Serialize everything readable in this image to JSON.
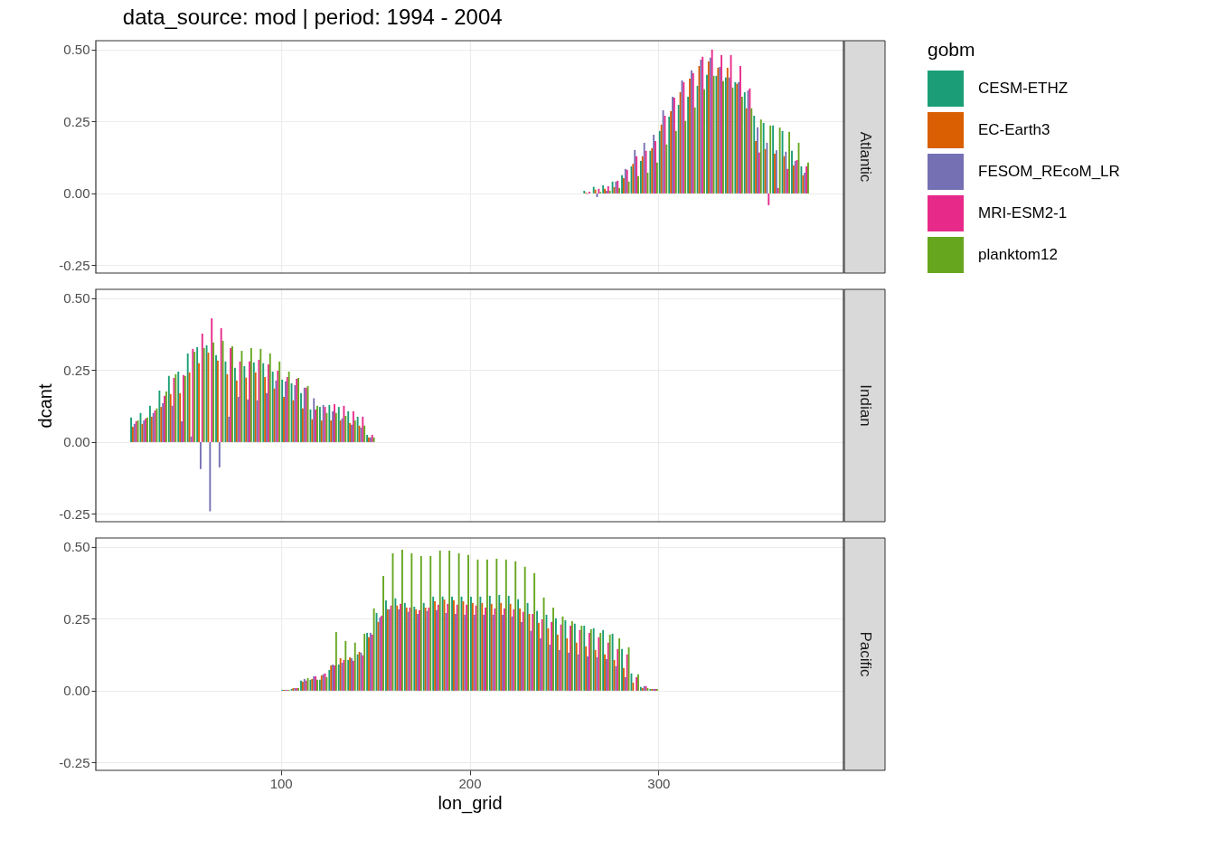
{
  "chart_data": [
    {
      "type": "bar",
      "title": "data_source: mod | period: 1994 - 2004",
      "annotations": [
        "Atlantic"
      ],
      "legend": "right",
      "legend_title": "gobm",
      "grid": true,
      "tick_labels": "y",
      "xlim": [
        2,
        398
      ],
      "xticks": [
        100,
        200,
        300
      ],
      "ylim": [
        -0.277,
        0.531
      ],
      "yticks": [
        {
          "value": -0.25,
          "label": "-0.25"
        },
        {
          "value": 0,
          "label": "0.00"
        },
        {
          "value": 0.25,
          "label": "0.25"
        },
        {
          "value": 0.5,
          "label": "0.50"
        }
      ],
      "x": [
        262.5,
        267.5,
        272.5,
        277.5,
        282.5,
        287.5,
        292.5,
        297.5,
        302.5,
        307.5,
        312.5,
        317.5,
        322.5,
        327.5,
        332.5,
        337.5,
        342.5,
        347.5,
        352.5,
        357.5,
        362.5,
        367.5,
        372.5,
        377.5
      ],
      "series": [
        {
          "name": "CESM-ETHZ",
          "color": "#1b9e77",
          "values": [
            0.009,
            0.023,
            0.028,
            0.041,
            0.063,
            0.094,
            0.113,
            0.148,
            0.217,
            0.267,
            0.308,
            0.336,
            0.374,
            0.412,
            0.409,
            0.403,
            0.387,
            0.352,
            0.27,
            0.245,
            0.236,
            0.217,
            0.148,
            0.094
          ]
        },
        {
          "name": "EC-Earth3",
          "color": "#d95f02",
          "values": [
            0.003,
            0.013,
            0.016,
            0.022,
            0.053,
            0.103,
            0.129,
            0.157,
            0.239,
            0.286,
            0.352,
            0.399,
            0.443,
            0.459,
            0.437,
            0.437,
            0.381,
            0.296,
            0.182,
            0.154,
            0.138,
            0.129,
            0.097,
            0.063
          ]
        },
        {
          "name": "FESOM_REcoM_LR",
          "color": "#7570b3",
          "values": [
            -0.002,
            -0.013,
            0.009,
            0.041,
            0.085,
            0.151,
            0.176,
            0.204,
            0.289,
            0.336,
            0.393,
            0.428,
            0.465,
            0.472,
            0.44,
            0.403,
            0.387,
            0.358,
            0.23,
            0.176,
            0.15,
            0.145,
            0.113,
            0.072
          ]
        },
        {
          "name": "MRI-ESM2-1",
          "color": "#e7298a",
          "values": [
            0.006,
            0.016,
            0.025,
            0.044,
            0.082,
            0.129,
            0.148,
            0.182,
            0.27,
            0.333,
            0.387,
            0.418,
            0.475,
            0.5,
            0.481,
            0.481,
            0.443,
            0.365,
            0.142,
            -0.041,
            0.019,
            0.085,
            0.116,
            0.094
          ]
        },
        {
          "name": "planktom12",
          "color": "#66a61e",
          "values": [
            null,
            0.005,
            0.009,
            0.019,
            0.041,
            0.06,
            0.072,
            0.107,
            0.17,
            0.217,
            0.252,
            0.299,
            0.362,
            0.409,
            0.39,
            0.368,
            0.336,
            0.296,
            0.257,
            0.236,
            0.229,
            0.214,
            0.176,
            0.107
          ]
        }
      ]
    },
    {
      "type": "bar",
      "annotations": [
        "Indian"
      ],
      "ylabel": "dcant",
      "grid": true,
      "tick_labels": "y",
      "xlim": [
        2,
        398
      ],
      "xticks": [
        100,
        200,
        300
      ],
      "ylim": [
        -0.277,
        0.531
      ],
      "yticks": [
        {
          "value": -0.25,
          "label": "-0.25"
        },
        {
          "value": 0,
          "label": "0.00"
        },
        {
          "value": 0.25,
          "label": "0.25"
        },
        {
          "value": 0.5,
          "label": "0.50"
        }
      ],
      "x": [
        22.5,
        27.5,
        32.5,
        37.5,
        42.5,
        47.5,
        52.5,
        57.5,
        62.5,
        67.5,
        72.5,
        77.5,
        82.5,
        87.5,
        92.5,
        97.5,
        102.5,
        107.5,
        112.5,
        117.5,
        122.5,
        127.5,
        132.5,
        137.5,
        142.5,
        147.5
      ],
      "series": [
        {
          "name": "CESM-ETHZ",
          "color": "#1b9e77",
          "values": [
            0.085,
            0.101,
            0.126,
            0.179,
            0.23,
            0.245,
            0.308,
            0.33,
            0.336,
            0.302,
            0.28,
            0.258,
            0.264,
            0.277,
            0.274,
            0.245,
            0.217,
            0.204,
            0.17,
            0.113,
            0.122,
            0.129,
            0.122,
            0.107,
            0.088,
            0.025
          ]
        },
        {
          "name": "EC-Earth3",
          "color": "#d95f02",
          "values": [
            0.053,
            0.063,
            0.088,
            0.122,
            0.167,
            0.17,
            0.242,
            0.274,
            0.311,
            0.283,
            0.236,
            0.214,
            0.224,
            0.242,
            0.226,
            0.186,
            0.157,
            0.145,
            0.117,
            0.079,
            0.075,
            0.075,
            0.075,
            0.066,
            0.057,
            0.016
          ]
        },
        {
          "name": "FESOM_REcoM_LR",
          "color": "#7570b3",
          "values": [
            0.063,
            0.075,
            0.101,
            0.135,
            0.126,
            0.072,
            0.019,
            -0.094,
            -0.241,
            -0.088,
            0.088,
            0.157,
            0.148,
            0.145,
            0.17,
            0.214,
            0.211,
            0.198,
            0.189,
            0.152,
            0.129,
            0.107,
            0.082,
            0.06,
            0.05,
            0.016
          ]
        },
        {
          "name": "MRI-ESM2-1",
          "color": "#e7298a",
          "values": [
            0.072,
            0.082,
            0.11,
            0.161,
            0.223,
            0.233,
            0.324,
            0.377,
            0.43,
            0.396,
            0.327,
            0.28,
            0.28,
            0.286,
            0.27,
            0.248,
            0.226,
            0.22,
            0.189,
            0.113,
            0.122,
            0.132,
            0.126,
            0.107,
            0.088,
            0.025
          ]
        },
        {
          "name": "planktom12",
          "color": "#66a61e",
          "values": [
            0.075,
            0.085,
            0.117,
            0.176,
            0.236,
            0.23,
            0.314,
            0.327,
            0.346,
            0.352,
            0.333,
            0.317,
            0.327,
            0.324,
            0.308,
            0.28,
            0.245,
            0.223,
            0.195,
            0.126,
            0.101,
            0.101,
            0.091,
            0.075,
            0.057,
            0.016
          ]
        }
      ]
    },
    {
      "type": "bar",
      "annotations": [
        "Pacific"
      ],
      "xlabel": "lon_grid",
      "grid": true,
      "xlim": [
        2,
        398
      ],
      "xticks": [
        100,
        200,
        300
      ],
      "ylim": [
        -0.277,
        0.531
      ],
      "yticks": [
        {
          "value": -0.25,
          "label": "-0.25"
        },
        {
          "value": 0,
          "label": "0.00"
        },
        {
          "value": 0.25,
          "label": "0.25"
        },
        {
          "value": 0.5,
          "label": "0.50"
        }
      ],
      "x": [
        102.5,
        107.5,
        112.5,
        117.5,
        122.5,
        127.5,
        132.5,
        137.5,
        142.5,
        147.5,
        152.5,
        157.5,
        162.5,
        167.5,
        172.5,
        177.5,
        182.5,
        187.5,
        192.5,
        197.5,
        202.5,
        207.5,
        212.5,
        217.5,
        222.5,
        227.5,
        232.5,
        237.5,
        242.5,
        247.5,
        252.5,
        257.5,
        262.5,
        267.5,
        272.5,
        277.5,
        282.5,
        287.5,
        292.5,
        297.5
      ],
      "series": [
        {
          "name": "CESM-ETHZ",
          "color": "#1b9e77",
          "values": [
            0.003,
            0.006,
            0.035,
            0.038,
            0.038,
            0.072,
            0.091,
            0.107,
            0.126,
            0.201,
            0.27,
            0.314,
            0.321,
            0.305,
            0.292,
            0.305,
            0.327,
            0.327,
            0.327,
            0.327,
            0.327,
            0.327,
            0.33,
            0.333,
            0.33,
            0.318,
            0.305,
            0.277,
            0.264,
            0.252,
            0.245,
            0.233,
            0.226,
            0.217,
            0.211,
            0.198,
            0.145,
            0.06,
            0.013,
            0.006
          ]
        },
        {
          "name": "EC-Earth3",
          "color": "#d95f02",
          "values": [
            0.003,
            0.009,
            0.031,
            0.041,
            0.053,
            0.088,
            0.113,
            0.116,
            0.135,
            0.186,
            0.239,
            0.283,
            0.296,
            0.289,
            0.283,
            0.289,
            0.311,
            0.317,
            0.314,
            0.311,
            0.305,
            0.305,
            0.302,
            0.305,
            0.302,
            0.286,
            0.267,
            0.236,
            0.217,
            0.195,
            0.182,
            0.167,
            0.154,
            0.141,
            0.126,
            0.107,
            0.079,
            0.028,
            0.009,
            0.006
          ]
        },
        {
          "name": "FESOM_REcoM_LR",
          "color": "#7570b3",
          "values": [
            0.003,
            0.009,
            0.041,
            0.05,
            0.057,
            0.091,
            0.097,
            0.113,
            0.132,
            0.201,
            0.255,
            0.283,
            0.283,
            0.274,
            0.267,
            0.277,
            0.28,
            0.27,
            0.267,
            0.264,
            0.264,
            0.264,
            0.264,
            0.264,
            0.258,
            0.239,
            0.208,
            0.182,
            0.16,
            0.141,
            0.132,
            0.126,
            0.119,
            0.116,
            0.11,
            0.085,
            0.047,
            null,
            0.016,
            0.006
          ]
        },
        {
          "name": "MRI-ESM2-1",
          "color": "#e7298a",
          "values": [
            0.003,
            0.009,
            0.035,
            0.05,
            0.06,
            0.088,
            0.107,
            0.104,
            0.123,
            0.195,
            0.261,
            0.296,
            0.302,
            0.289,
            0.28,
            0.289,
            0.299,
            0.302,
            0.299,
            0.299,
            0.296,
            0.289,
            0.286,
            0.286,
            0.283,
            0.274,
            0.267,
            0.248,
            0.239,
            0.23,
            0.226,
            0.211,
            0.201,
            0.186,
            0.167,
            0.145,
            0.126,
            0.047,
            0.016,
            0.006
          ]
        },
        {
          "name": "planktom12",
          "color": "#66a61e",
          "values": [
            0.003,
            0.009,
            0.044,
            0.038,
            0.047,
            0.204,
            0.173,
            0.167,
            0.198,
            0.286,
            0.399,
            0.478,
            0.49,
            0.478,
            0.468,
            0.468,
            0.487,
            0.487,
            0.478,
            0.472,
            0.456,
            0.456,
            0.459,
            0.456,
            0.45,
            0.431,
            0.409,
            0.324,
            0.289,
            0.258,
            0.242,
            0.226,
            0.214,
            0.201,
            0.195,
            0.182,
            0.151,
            0.057,
            0.009,
            0.006
          ]
        }
      ]
    }
  ]
}
